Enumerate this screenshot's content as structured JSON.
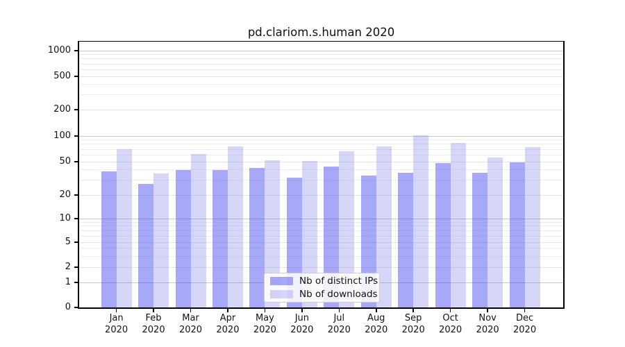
{
  "title": "pd.clariom.s.human 2020",
  "chart_data": {
    "type": "bar",
    "title": "pd.clariom.s.human 2020",
    "categories": [
      "Jan 2020",
      "Feb 2020",
      "Mar 2020",
      "Apr 2020",
      "May 2020",
      "Jun 2020",
      "Jul 2020",
      "Aug 2020",
      "Sep 2020",
      "Oct 2020",
      "Nov 2020",
      "Dec 2020"
    ],
    "xtick_month": [
      "Jan",
      "Feb",
      "Mar",
      "Apr",
      "May",
      "Jun",
      "Jul",
      "Aug",
      "Sep",
      "Oct",
      "Nov",
      "Dec"
    ],
    "xtick_year": "2020",
    "series": [
      {
        "name": "Nb of distinct IPs",
        "values": [
          38,
          27,
          40,
          40,
          42,
          32,
          44,
          34,
          37,
          48,
          37,
          49
        ],
        "color": "rgba(70,70,240,0.47)"
      },
      {
        "name": "Nb of downloads",
        "values": [
          70,
          36,
          62,
          75,
          52,
          51,
          66,
          76,
          102,
          83,
          56,
          74
        ],
        "color": "rgba(120,120,235,0.30)"
      }
    ],
    "xlabel": "",
    "ylabel": "",
    "yscale": "symlog",
    "yticks": [
      0,
      1,
      2,
      5,
      10,
      20,
      50,
      100,
      200,
      500,
      1000
    ],
    "ylim": [
      0,
      1250
    ],
    "grid": "horizontal",
    "legend_position": "lower center",
    "colors": {
      "grid_major": "#c8c8c8",
      "grid_light": "#e2e2e2",
      "grid_minor": "#ededed",
      "spine": "#000000",
      "background": "#ffffff"
    }
  }
}
